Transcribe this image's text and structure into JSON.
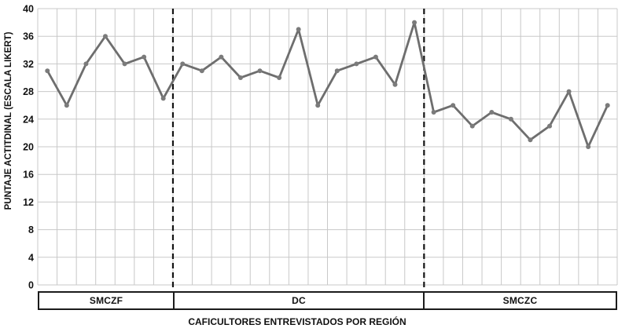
{
  "chart_data": {
    "type": "line",
    "title": "",
    "xlabel": "CAFICULTORES ENTREVISTADOS POR REGIÓN",
    "ylabel": "PUNTAJE ACTITDINAL (ESCALA LIKERT)",
    "ylim": [
      0,
      40
    ],
    "yticks": [
      0,
      4,
      8,
      12,
      16,
      20,
      24,
      28,
      32,
      36,
      40
    ],
    "grid": true,
    "legend_position": "none",
    "regions": [
      {
        "label": "SMCZF",
        "values": [
          31,
          26,
          32,
          36,
          32,
          33,
          27
        ]
      },
      {
        "label": "DC",
        "values": [
          32,
          31,
          33,
          30,
          31,
          30,
          37,
          26,
          31,
          32,
          33,
          29,
          38
        ]
      },
      {
        "label": "SMCZC",
        "values": [
          25,
          26,
          23,
          25,
          24,
          21,
          23,
          28,
          20,
          26
        ]
      }
    ],
    "region_separator": "dashed",
    "colors": {
      "line": "#6e6e6e",
      "marker": "#7b7b7b",
      "grid": "#c8c8c8",
      "separator": "#141414",
      "text": "#111111",
      "band_border": "#1b1b1b",
      "background": "#ffffff"
    }
  }
}
